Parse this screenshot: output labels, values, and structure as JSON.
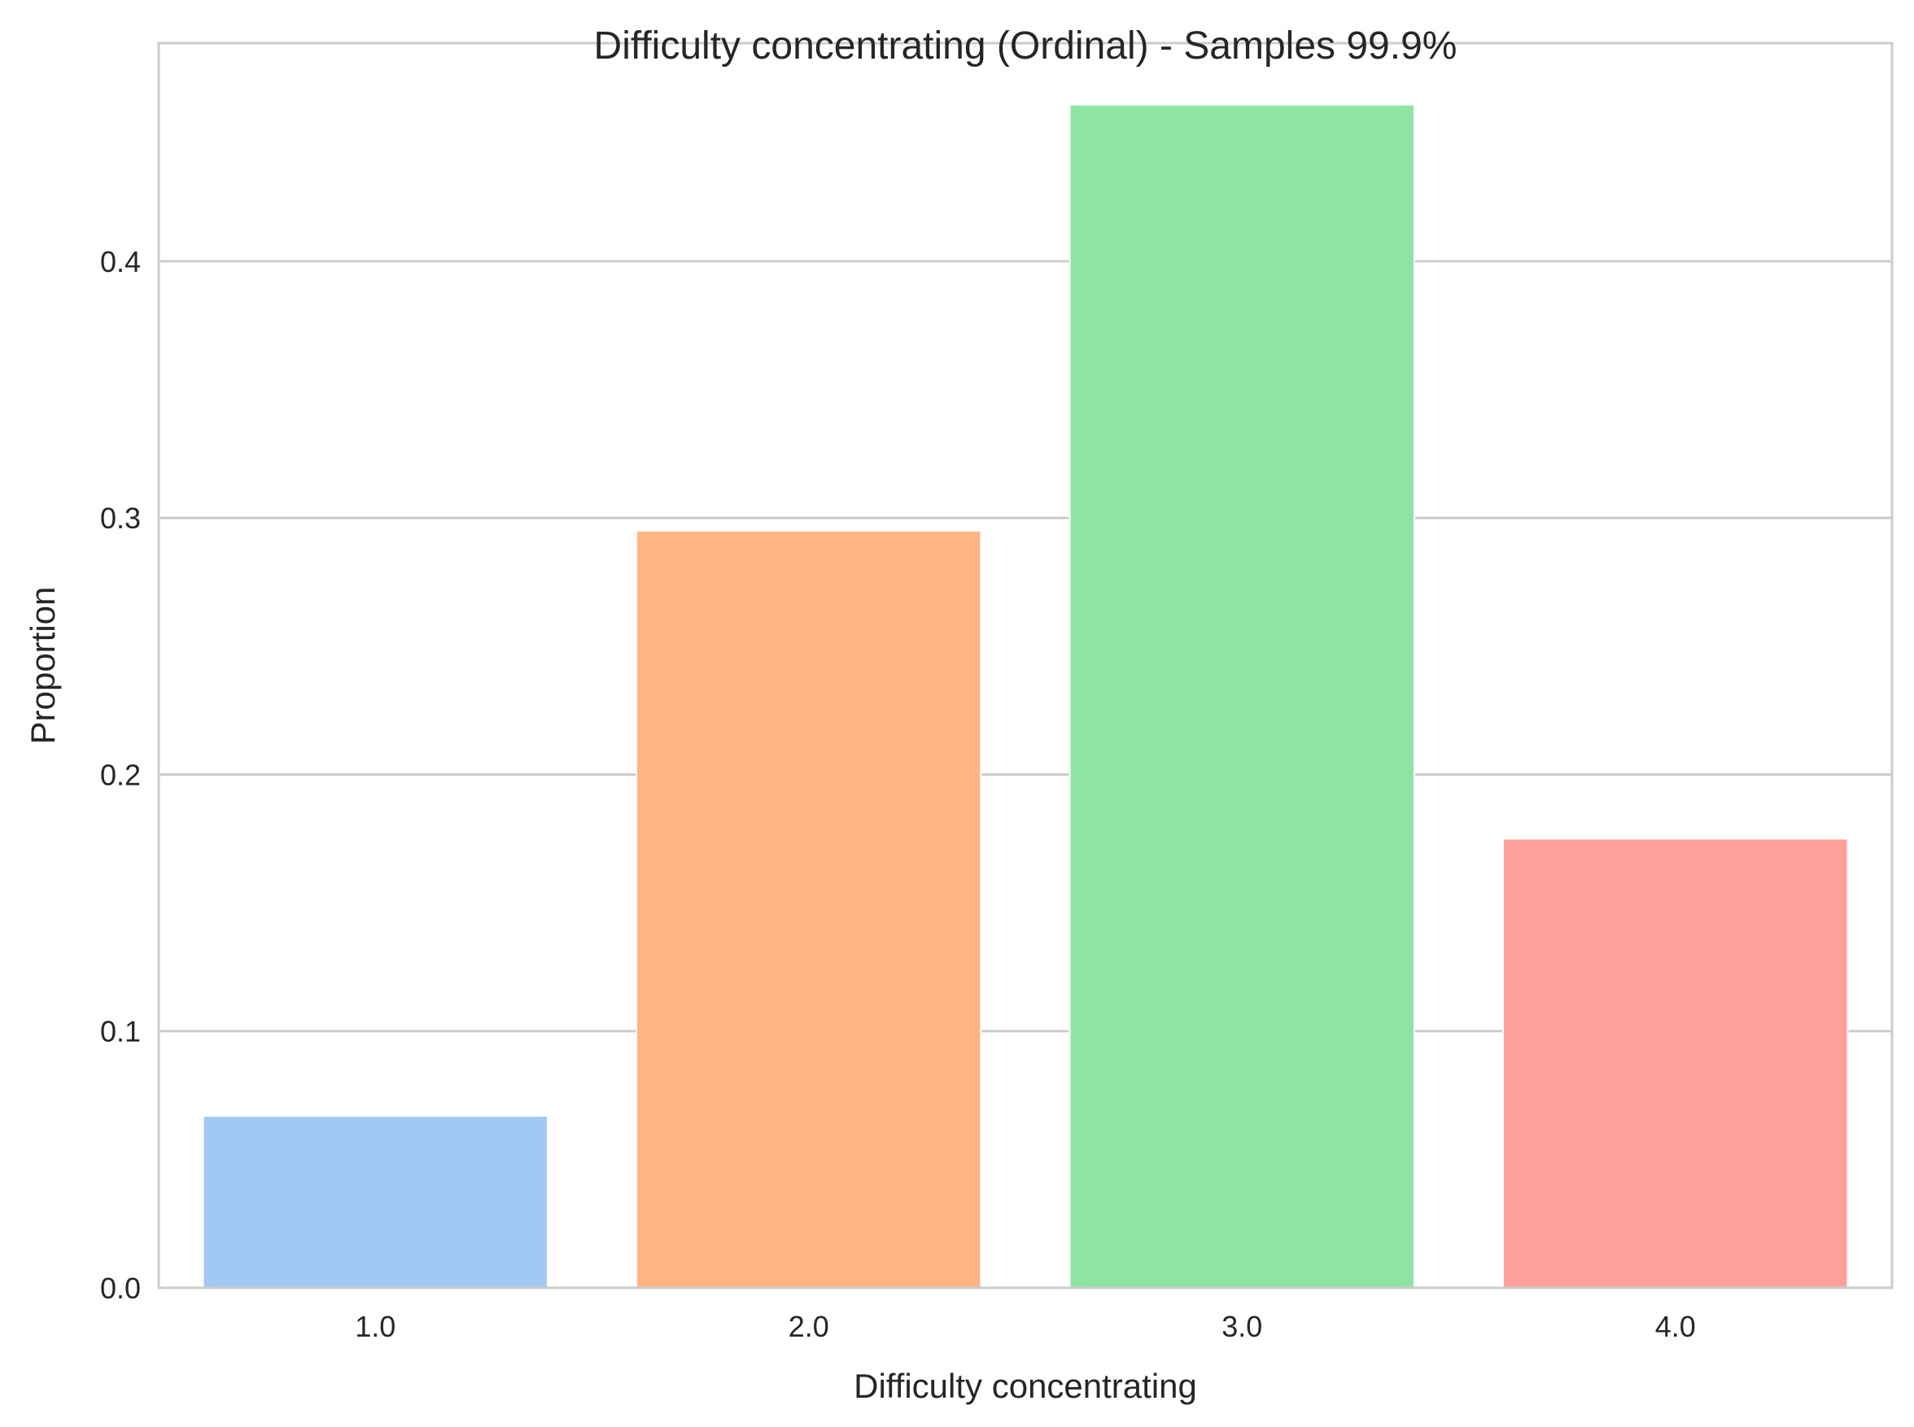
{
  "chart_data": {
    "type": "bar",
    "title": "Difficulty concentrating (Ordinal) - Samples 99.9%",
    "xlabel": "Difficulty concentrating",
    "ylabel": "Proportion",
    "categories": [
      "1.0",
      "2.0",
      "3.0",
      "4.0"
    ],
    "values": [
      0.067,
      0.295,
      0.461,
      0.175
    ],
    "colors": [
      "#a1c9f4",
      "#ffb482",
      "#8de5a1",
      "#ff9f9b"
    ],
    "ylim": [
      0,
      0.485
    ],
    "yticks": [
      0.0,
      0.1,
      0.2,
      0.3,
      0.4
    ],
    "ytick_labels": [
      "0.0",
      "0.1",
      "0.2",
      "0.3",
      "0.4"
    ],
    "grid": true,
    "grid_axis": "y",
    "legend": false
  }
}
